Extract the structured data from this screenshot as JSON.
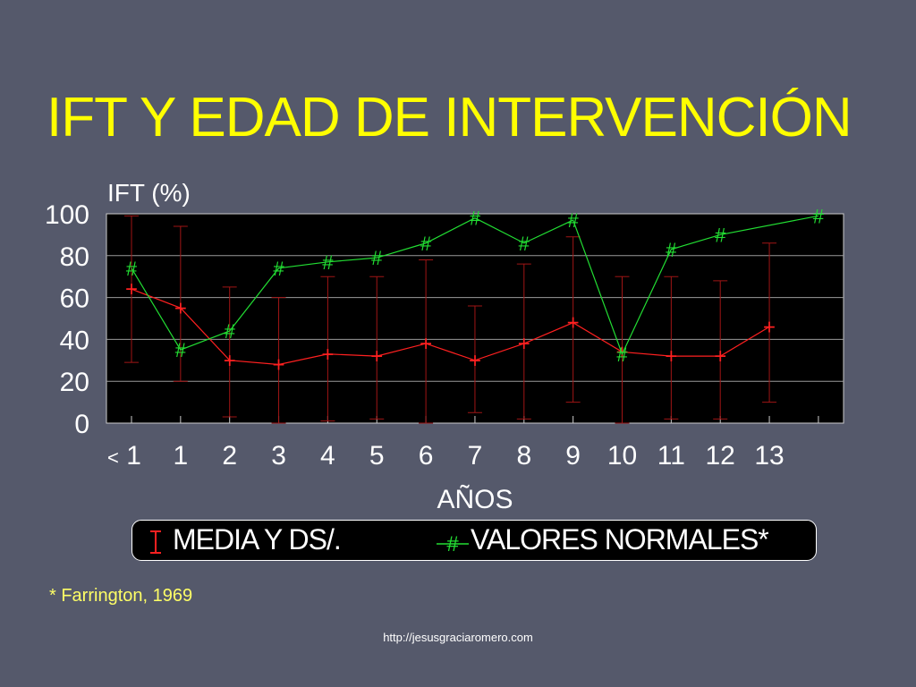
{
  "slide": {
    "title": "IFT Y EDAD DE INTERVENCIÓN",
    "footnote": "* Farrington, 1969",
    "source": "http://jesusgraciaromero.com"
  },
  "legend": {
    "mean_label": "MEDIA Y DS/.",
    "normal_label": "VALORES NORMALES*",
    "normal_marker": "#"
  },
  "colors": {
    "background": "#55596b",
    "plot_bg": "#000000",
    "title": "#ffff00",
    "mean_series": "#ff2020",
    "normal_series": "#22dd33",
    "axis_text": "#ffffff",
    "grid": "#9a9a9a"
  },
  "chart_data": {
    "type": "line",
    "title": "",
    "ylabel": "IFT (%)",
    "xlabel": "AÑOS",
    "ylim": [
      0,
      100
    ],
    "y_ticks": [
      0,
      20,
      40,
      60,
      80,
      100
    ],
    "categories": [
      "< 1",
      "1",
      "2",
      "3",
      "4",
      "5",
      "6",
      "7",
      "8",
      "9",
      "10",
      "11",
      "12",
      "13",
      ""
    ],
    "grid": true,
    "legend_position": "bottom",
    "series": [
      {
        "name": "MEDIA Y DS/.",
        "marker": "+",
        "values": [
          64,
          55,
          30,
          28,
          33,
          32,
          38,
          30,
          38,
          48,
          34,
          32,
          32,
          46,
          null
        ],
        "error_low": [
          29,
          20,
          3,
          0,
          1,
          2,
          0,
          5,
          2,
          10,
          0,
          2,
          2,
          10,
          null
        ],
        "error_high": [
          99,
          94,
          65,
          60,
          70,
          70,
          78,
          56,
          76,
          89,
          70,
          70,
          68,
          86,
          null
        ]
      },
      {
        "name": "VALORES NORMALES*",
        "marker": "#",
        "values": [
          74,
          35,
          44,
          74,
          77,
          79,
          86,
          98,
          86,
          97,
          33,
          83,
          90,
          null,
          99
        ]
      }
    ]
  }
}
